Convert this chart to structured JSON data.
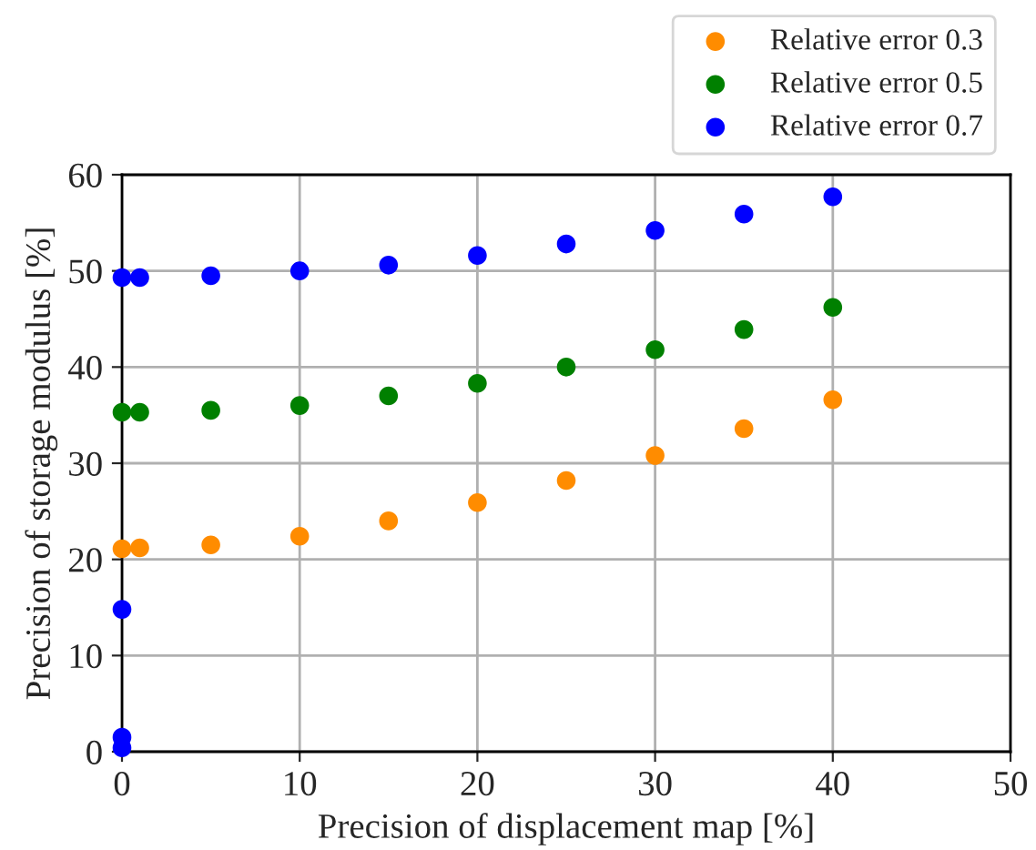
{
  "chart_data": {
    "type": "scatter",
    "xlabel": "Precision of displacement map [%]",
    "ylabel": "Precision of storage modulus [%]",
    "xlim": [
      0,
      50
    ],
    "ylim": [
      0,
      60
    ],
    "xticks": [
      0,
      10,
      20,
      30,
      40,
      50
    ],
    "yticks": [
      0,
      10,
      20,
      30,
      40,
      50,
      60
    ],
    "grid": true,
    "legend": "top right",
    "marker": "circle",
    "series": [
      {
        "name": "Relative error 0.3",
        "color": "#ff8c00",
        "x": [
          0,
          1,
          5,
          10,
          15,
          20,
          25,
          30,
          35,
          40
        ],
        "values": [
          21.1,
          21.2,
          21.5,
          22.4,
          24.0,
          25.9,
          28.2,
          30.8,
          33.6,
          36.6
        ]
      },
      {
        "name": "Relative error 0.5",
        "color": "#008000",
        "x": [
          0,
          1,
          5,
          10,
          15,
          20,
          25,
          30,
          35,
          40
        ],
        "values": [
          35.3,
          35.3,
          35.5,
          36.0,
          37.0,
          38.3,
          40.0,
          41.8,
          43.9,
          46.2
        ]
      },
      {
        "name": "Relative error 0.7",
        "color": "#0000ff",
        "x": [
          0,
          0,
          0,
          0,
          1,
          5,
          10,
          15,
          20,
          25,
          30,
          35,
          40
        ],
        "values": [
          0.4,
          1.5,
          14.8,
          49.3,
          49.3,
          49.5,
          50.0,
          50.6,
          51.6,
          52.8,
          54.2,
          55.9,
          57.7
        ]
      }
    ]
  }
}
